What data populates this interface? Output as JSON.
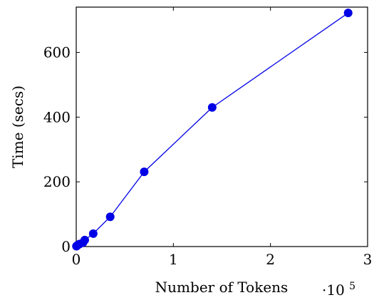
{
  "chart_data": {
    "type": "line",
    "xlabel": "Number of Tokens",
    "ylabel": "Time (secs)",
    "x_multiplier": {
      "base": "·10",
      "exponent": "5"
    },
    "xlim": [
      0,
      3
    ],
    "ylim": [
      0,
      740
    ],
    "x_ticks": [
      0,
      1,
      2,
      3
    ],
    "x_tick_labels": [
      "0",
      "1",
      "2",
      "3"
    ],
    "y_ticks": [
      0,
      200,
      400,
      600
    ],
    "y_tick_labels": [
      "0",
      "200",
      "400",
      "600"
    ],
    "grid": false,
    "series": [
      {
        "color": "#0000e6",
        "marker": "circle",
        "points": [
          {
            "x": 0.0022,
            "y": 1
          },
          {
            "x": 0.0044,
            "y": 2
          },
          {
            "x": 0.0088,
            "y": 3
          },
          {
            "x": 0.0175,
            "y": 5
          },
          {
            "x": 0.035,
            "y": 8
          },
          {
            "x": 0.07,
            "y": 12
          },
          {
            "x": 0.088,
            "y": 20
          },
          {
            "x": 0.175,
            "y": 40
          },
          {
            "x": 0.35,
            "y": 92
          },
          {
            "x": 0.7,
            "y": 231
          },
          {
            "x": 1.4,
            "y": 430
          },
          {
            "x": 2.8,
            "y": 722
          }
        ]
      }
    ]
  }
}
